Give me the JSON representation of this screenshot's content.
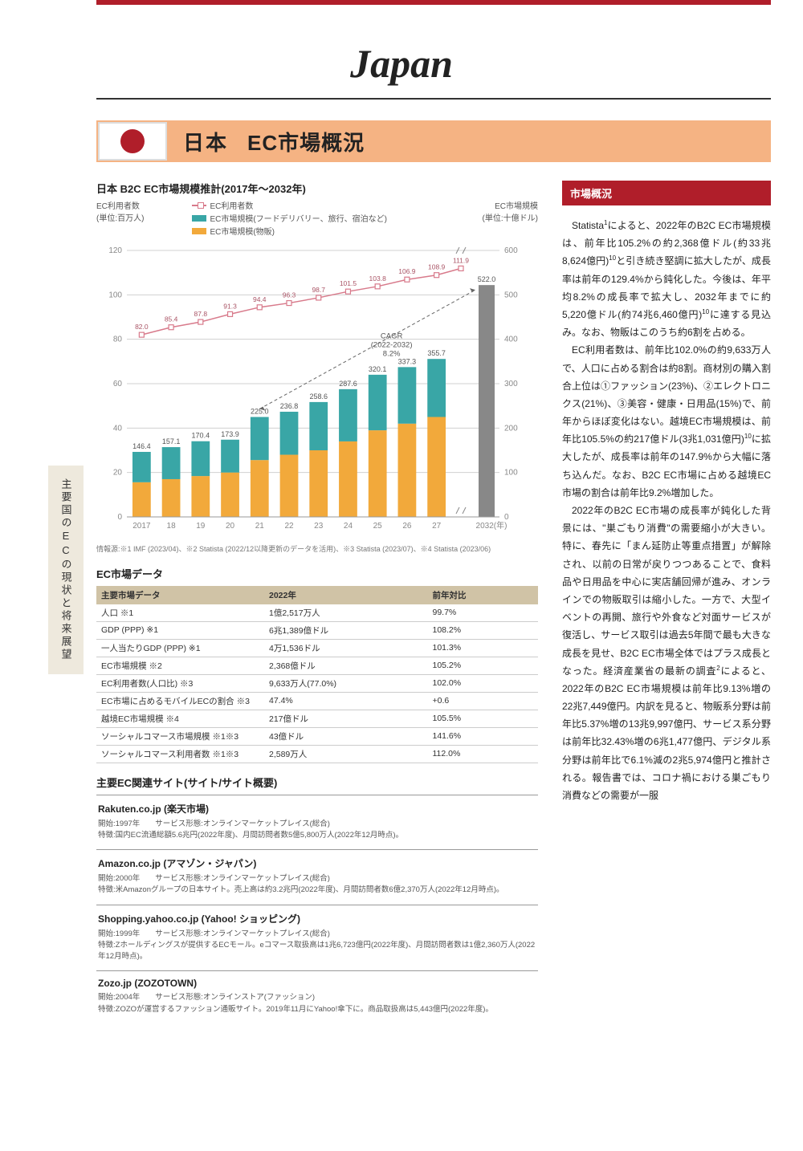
{
  "page": {
    "country_title": "Japan",
    "side_tab": "主要国のECの現状と将来展望"
  },
  "header": {
    "country_jp": "日本",
    "subtitle": "EC市場概況"
  },
  "chart": {
    "title": "日本 B2C EC市場規模推計(2017年〜2032年)",
    "left_axis_label": "EC利用者数",
    "left_axis_unit": "(単位:百万人)",
    "right_axis_label": "EC市場規模",
    "right_axis_unit": "(単位:十億ドル)",
    "legend": {
      "users": "EC利用者数",
      "market_food": "EC市場規模(フードデリバリー、旅行、宿泊など)",
      "market_goods": "EC市場規模(物販)"
    },
    "colors": {
      "users_line": "#d87a8b",
      "bar_food": "#39a6a6",
      "bar_goods": "#f2a93b",
      "grid": "#d0d0d0",
      "axis_text": "#888",
      "forecast_bar": "#888888",
      "cagr_arrow": "#666"
    },
    "left_ylim": [
      0,
      120
    ],
    "left_ytick_step": 20,
    "right_ylim": [
      0,
      600
    ],
    "right_ytick_step": 100,
    "years": [
      "2017",
      "18",
      "19",
      "20",
      "21",
      "22",
      "23",
      "24",
      "25",
      "26",
      "27"
    ],
    "axis_suffix_year": "2032(年)",
    "stacked_totals": [
      146.4,
      157.1,
      170.4,
      173.9,
      225.0,
      236.8,
      258.6,
      287.6,
      320.1,
      337.3,
      355.7
    ],
    "goods": [
      78,
      85,
      92,
      100,
      128,
      140,
      150,
      170,
      195,
      210,
      225
    ],
    "food_travel": [
      68.4,
      72.1,
      78.4,
      73.9,
      97.0,
      96.8,
      108.6,
      117.6,
      125.1,
      127.3,
      130.7
    ],
    "forecast_2032": 522.0,
    "users_line_values": [
      82.0,
      85.4,
      87.8,
      91.3,
      94.4,
      96.3,
      98.7,
      101.5,
      103.8,
      106.9,
      108.9,
      111.9
    ],
    "cagr_label": "CAGR\n(2022-2032)\n8.2%",
    "footnote": "情報源:※1 IMF (2023/04)、※2 Statista (2022/12以降更新のデータを活用)、※3 Statista (2023/07)、※4 Statista (2023/06)"
  },
  "market_table": {
    "heading": "EC市場データ",
    "cols": [
      "主要市場データ",
      "2022年",
      "前年対比"
    ],
    "rows": [
      [
        "人口 ※1",
        "1億2,517万人",
        "99.7%"
      ],
      [
        "GDP (PPP) ※1",
        "6兆1,389億ドル",
        "108.2%"
      ],
      [
        "一人当たりGDP (PPP) ※1",
        "4万1,536ドル",
        "101.3%"
      ],
      [
        "EC市場規模 ※2",
        "2,368億ドル",
        "105.2%"
      ],
      [
        "EC利用者数(人口比) ※3",
        "9,633万人(77.0%)",
        "102.0%"
      ],
      [
        "EC市場に占めるモバイルECの割合 ※3",
        "47.4%",
        "+0.6"
      ],
      [
        "越境EC市場規模 ※4",
        "217億ドル",
        "105.5%"
      ],
      [
        "ソーシャルコマース市場規模 ※1※3",
        "43億ドル",
        "141.6%"
      ],
      [
        "ソーシャルコマース利用者数 ※1※3",
        "2,589万人",
        "112.0%"
      ]
    ]
  },
  "sites": {
    "heading": "主要EC関連サイト(サイト/サイト概要)",
    "items": [
      {
        "title": "Rakuten.co.jp (楽天市場)",
        "line1": "開始:1997年　　サービス形態:オンラインマーケットプレイス(総合)",
        "line2": "特徴:国内EC流通総額5.6兆円(2022年度)、月間訪問者数5億5,800万人(2022年12月時点)。"
      },
      {
        "title": "Amazon.co.jp (アマゾン・ジャパン)",
        "line1": "開始:2000年　　サービス形態:オンラインマーケットプレイス(総合)",
        "line2": "特徴:米Amazonグループの日本サイト。売上高は約3.2兆円(2022年度)、月間訪問者数6億2,370万人(2022年12月時点)。"
      },
      {
        "title": "Shopping.yahoo.co.jp (Yahoo! ショッピング)",
        "line1": "開始:1999年　　サービス形態:オンラインマーケットプレイス(総合)",
        "line2": "特徴:Zホールディングスが提供するECモール。eコマース取扱高は1兆6,723億円(2022年度)、月間訪問者数は1億2,360万人(2022年12月時点)。"
      },
      {
        "title": "Zozo.jp (ZOZOTOWN)",
        "line1": "開始:2004年　　サービス形態:オンラインストア(ファッション)",
        "line2": "特徴:ZOZOが運営するファッション通販サイト。2019年11月にYahoo!傘下に。商品取扱高は5,443億円(2022年度)。"
      }
    ]
  },
  "right": {
    "heading": "市場概況",
    "paragraphs": [
      "Statista<sup>1</sup>によると、2022年のB2C EC市場規模は、前年比105.2%の約2,368億ドル(約33兆8,624億円)<sup>10</sup>と引き続き堅調に拡大したが、成長率は前年の129.4%から鈍化した。今後は、年平均8.2%の成長率で拡大し、2032年までに約5,220億ドル(約74兆6,460億円)<sup>10</sup>に達する見込み。なお、物販はこのうち約6割を占める。",
      "EC利用者数は、前年比102.0%の約9,633万人で、人口に占める割合は約8割。商材別の購入割合上位は①ファッション(23%)、②エレクトロニクス(21%)、③美容・健康・日用品(15%)で、前年からほぼ変化はない。越境EC市場規模は、前年比105.5%の約217億ドル(3兆1,031億円)<sup>10</sup>に拡大したが、成長率は前年の147.9%から大幅に落ち込んだ。なお、B2C EC市場に占める越境EC市場の割合は前年比9.2%増加した。",
      "2022年のB2C EC市場の成長率が鈍化した背景には、\"巣ごもり消費\"の需要縮小が大きい。特に、春先に「まん延防止等重点措置」が解除され、以前の日常が戻りつつあることで、食料品や日用品を中心に実店舗回帰が進み、オンラインでの物販取引は縮小した。一方で、大型イベントの再開、旅行や外食など対面サービスが復活し、サービス取引は過去5年間で最も大きな成長を見せ、B2C EC市場全体ではプラス成長となった。経済産業省の最新の調査<sup>2</sup>によると、2022年のB2C EC市場規模は前年比9.13%増の22兆7,449億円。内訳を見ると、物販系分野は前年比5.37%増の13兆9,997億円、サービス系分野は前年比32.43%増の6兆1,477億円、デジタル系分野は前年比で6.1%減の2兆5,974億円と推計される。報告書では、コロナ禍における巣ごもり消費などの需要が一服"
    ]
  }
}
